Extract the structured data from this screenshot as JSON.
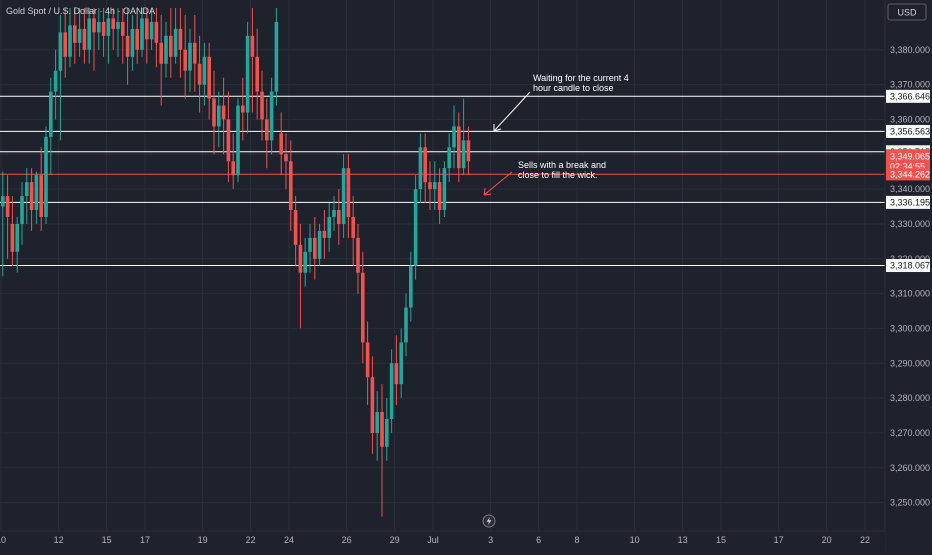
{
  "header": {
    "symbol_title": "Gold Spot / U.S. Dollar · 4h · OANDA"
  },
  "price_axis": {
    "currency_button": "USD"
  },
  "colors": {
    "background": "#1e222d",
    "bull": "#26a69a",
    "bear": "#ef5350",
    "level_line": "#ffffff",
    "current_line": "#ef5350",
    "axis_text": "#b2b5be"
  },
  "chart_data": {
    "type": "candlestick",
    "title": "Gold Spot / U.S. Dollar · 4h · OANDA",
    "y_axis": {
      "side": "right",
      "range": [
        3245,
        3392
      ],
      "ticks": [
        3250,
        3260,
        3270,
        3280,
        3290,
        3300,
        3310,
        3320,
        3330,
        3340,
        3350,
        3360,
        3370,
        3380
      ],
      "tick_labels": [
        "3,250.000",
        "3,260.000",
        "3,270.000",
        "3,280.000",
        "3,290.000",
        "3,300.000",
        "3,310.000",
        "3,320.000",
        "3,330.000",
        "3,340.000",
        "3,350.000",
        "3,360.000",
        "3,370.000",
        "3,380.000"
      ]
    },
    "x_axis": {
      "ticks": [
        {
          "label": "10",
          "idx": 0
        },
        {
          "label": "12",
          "idx": 12
        },
        {
          "label": "15",
          "idx": 22
        },
        {
          "label": "17",
          "idx": 30
        },
        {
          "label": "19",
          "idx": 42
        },
        {
          "label": "22",
          "idx": 52
        },
        {
          "label": "24",
          "idx": 60
        },
        {
          "label": "26",
          "idx": 72
        },
        {
          "label": "29",
          "idx": 82
        },
        {
          "label": "Jul",
          "idx": 90
        },
        {
          "label": "3",
          "idx": 102
        },
        {
          "label": "6",
          "idx": 112
        },
        {
          "label": "8",
          "idx": 120
        },
        {
          "label": "10",
          "idx": 132
        },
        {
          "label": "13",
          "idx": 142
        },
        {
          "label": "15",
          "idx": 150
        },
        {
          "label": "17",
          "idx": 162
        },
        {
          "label": "20",
          "idx": 172
        },
        {
          "label": "22",
          "idx": 180
        }
      ]
    },
    "candles": [
      {
        "o": 3335,
        "h": 3345,
        "c": 3338,
        "l": 3315
      },
      {
        "o": 3338,
        "h": 3344,
        "c": 3332,
        "l": 3320
      },
      {
        "o": 3330,
        "h": 3338,
        "c": 3322,
        "l": 3318
      },
      {
        "o": 3322,
        "h": 3332,
        "c": 3330,
        "l": 3316
      },
      {
        "o": 3330,
        "h": 3342,
        "c": 3338,
        "l": 3324
      },
      {
        "o": 3338,
        "h": 3346,
        "c": 3342,
        "l": 3330
      },
      {
        "o": 3342,
        "h": 3346,
        "c": 3334,
        "l": 3328
      },
      {
        "o": 3334,
        "h": 3345,
        "c": 3344,
        "l": 3330
      },
      {
        "o": 3344,
        "h": 3352,
        "c": 3332,
        "l": 3328
      },
      {
        "o": 3332,
        "h": 3358,
        "c": 3355,
        "l": 3330
      },
      {
        "o": 3355,
        "h": 3372,
        "c": 3368,
        "l": 3344
      },
      {
        "o": 3368,
        "h": 3380,
        "c": 3374,
        "l": 3360
      },
      {
        "o": 3374,
        "h": 3390,
        "c": 3385,
        "l": 3354
      },
      {
        "o": 3385,
        "h": 3392,
        "c": 3378,
        "l": 3372
      },
      {
        "o": 3378,
        "h": 3392,
        "c": 3387,
        "l": 3375
      },
      {
        "o": 3387,
        "h": 3392,
        "c": 3382,
        "l": 3376
      },
      {
        "o": 3382,
        "h": 3392,
        "c": 3386,
        "l": 3378
      },
      {
        "o": 3386,
        "h": 3392,
        "c": 3380,
        "l": 3376
      },
      {
        "o": 3380,
        "h": 3392,
        "c": 3389,
        "l": 3376
      },
      {
        "o": 3389,
        "h": 3392,
        "c": 3385,
        "l": 3374
      },
      {
        "o": 3385,
        "h": 3392,
        "c": 3388,
        "l": 3380
      },
      {
        "o": 3388,
        "h": 3392,
        "c": 3384,
        "l": 3378
      },
      {
        "o": 3384,
        "h": 3392,
        "c": 3389,
        "l": 3376
      },
      {
        "o": 3389,
        "h": 3392,
        "c": 3386,
        "l": 3380
      },
      {
        "o": 3386,
        "h": 3392,
        "c": 3388,
        "l": 3378
      },
      {
        "o": 3388,
        "h": 3392,
        "c": 3384,
        "l": 3376
      },
      {
        "o": 3384,
        "h": 3392,
        "c": 3378,
        "l": 3370
      },
      {
        "o": 3378,
        "h": 3390,
        "c": 3386,
        "l": 3374
      },
      {
        "o": 3386,
        "h": 3392,
        "c": 3380,
        "l": 3376
      },
      {
        "o": 3380,
        "h": 3392,
        "c": 3389,
        "l": 3378
      },
      {
        "o": 3389,
        "h": 3392,
        "c": 3383,
        "l": 3376
      },
      {
        "o": 3383,
        "h": 3392,
        "c": 3388,
        "l": 3380
      },
      {
        "o": 3388,
        "h": 3392,
        "c": 3382,
        "l": 3375
      },
      {
        "o": 3382,
        "h": 3390,
        "c": 3376,
        "l": 3364
      },
      {
        "o": 3376,
        "h": 3388,
        "c": 3384,
        "l": 3372
      },
      {
        "o": 3384,
        "h": 3392,
        "c": 3378,
        "l": 3372
      },
      {
        "o": 3378,
        "h": 3392,
        "c": 3386,
        "l": 3376
      },
      {
        "o": 3386,
        "h": 3392,
        "c": 3380,
        "l": 3372
      },
      {
        "o": 3380,
        "h": 3390,
        "c": 3374,
        "l": 3366
      },
      {
        "o": 3374,
        "h": 3386,
        "c": 3382,
        "l": 3368
      },
      {
        "o": 3382,
        "h": 3390,
        "c": 3376,
        "l": 3368
      },
      {
        "o": 3376,
        "h": 3384,
        "c": 3370,
        "l": 3362
      },
      {
        "o": 3370,
        "h": 3382,
        "c": 3378,
        "l": 3364
      },
      {
        "o": 3378,
        "h": 3382,
        "c": 3366,
        "l": 3360
      },
      {
        "o": 3366,
        "h": 3374,
        "c": 3358,
        "l": 3350
      },
      {
        "o": 3358,
        "h": 3368,
        "c": 3364,
        "l": 3352
      },
      {
        "o": 3364,
        "h": 3372,
        "c": 3360,
        "l": 3350
      },
      {
        "o": 3360,
        "h": 3368,
        "c": 3348,
        "l": 3342
      },
      {
        "o": 3348,
        "h": 3356,
        "c": 3344,
        "l": 3340
      },
      {
        "o": 3344,
        "h": 3366,
        "c": 3364,
        "l": 3342
      },
      {
        "o": 3364,
        "h": 3372,
        "c": 3362,
        "l": 3354
      },
      {
        "o": 3362,
        "h": 3388,
        "c": 3384,
        "l": 3356
      },
      {
        "o": 3384,
        "h": 3392,
        "c": 3378,
        "l": 3362
      },
      {
        "o": 3378,
        "h": 3386,
        "c": 3368,
        "l": 3360
      },
      {
        "o": 3368,
        "h": 3374,
        "c": 3360,
        "l": 3354
      },
      {
        "o": 3360,
        "h": 3366,
        "c": 3354,
        "l": 3346
      },
      {
        "o": 3354,
        "h": 3372,
        "c": 3368,
        "l": 3350
      },
      {
        "o": 3368,
        "h": 3392,
        "c": 3388,
        "l": 3364
      },
      {
        "o": 3356,
        "h": 3362,
        "c": 3350,
        "l": 3344
      },
      {
        "o": 3350,
        "h": 3356,
        "c": 3348,
        "l": 3340
      },
      {
        "o": 3348,
        "h": 3354,
        "c": 3334,
        "l": 3328
      },
      {
        "o": 3334,
        "h": 3338,
        "c": 3324,
        "l": 3318
      },
      {
        "o": 3324,
        "h": 3330,
        "c": 3316,
        "l": 3300
      },
      {
        "o": 3316,
        "h": 3326,
        "c": 3322,
        "l": 3312
      },
      {
        "o": 3322,
        "h": 3330,
        "c": 3326,
        "l": 3316
      },
      {
        "o": 3326,
        "h": 3332,
        "c": 3320,
        "l": 3314
      },
      {
        "o": 3320,
        "h": 3330,
        "c": 3328,
        "l": 3318
      },
      {
        "o": 3328,
        "h": 3334,
        "c": 3326,
        "l": 3320
      },
      {
        "o": 3326,
        "h": 3336,
        "c": 3332,
        "l": 3322
      },
      {
        "o": 3332,
        "h": 3338,
        "c": 3334,
        "l": 3328
      },
      {
        "o": 3334,
        "h": 3340,
        "c": 3330,
        "l": 3324
      },
      {
        "o": 3330,
        "h": 3350,
        "c": 3346,
        "l": 3326
      },
      {
        "o": 3346,
        "h": 3350,
        "c": 3332,
        "l": 3326
      },
      {
        "o": 3332,
        "h": 3338,
        "c": 3326,
        "l": 3318
      },
      {
        "o": 3326,
        "h": 3330,
        "c": 3316,
        "l": 3310
      },
      {
        "o": 3316,
        "h": 3322,
        "c": 3296,
        "l": 3290
      },
      {
        "o": 3296,
        "h": 3302,
        "c": 3286,
        "l": 3278
      },
      {
        "o": 3286,
        "h": 3292,
        "c": 3270,
        "l": 3264
      },
      {
        "o": 3270,
        "h": 3282,
        "c": 3276,
        "l": 3262
      },
      {
        "o": 3276,
        "h": 3284,
        "c": 3266,
        "l": 3246
      },
      {
        "o": 3266,
        "h": 3280,
        "c": 3274,
        "l": 3262
      },
      {
        "o": 3274,
        "h": 3294,
        "c": 3290,
        "l": 3270
      },
      {
        "o": 3290,
        "h": 3298,
        "c": 3284,
        "l": 3278
      },
      {
        "o": 3284,
        "h": 3300,
        "c": 3296,
        "l": 3280
      },
      {
        "o": 3296,
        "h": 3310,
        "c": 3306,
        "l": 3292
      },
      {
        "o": 3306,
        "h": 3322,
        "c": 3318,
        "l": 3302
      },
      {
        "o": 3318,
        "h": 3344,
        "c": 3340,
        "l": 3314
      },
      {
        "o": 3340,
        "h": 3356,
        "c": 3352,
        "l": 3336
      },
      {
        "o": 3352,
        "h": 3356,
        "c": 3342,
        "l": 3336
      },
      {
        "o": 3342,
        "h": 3348,
        "c": 3340,
        "l": 3334
      },
      {
        "o": 3340,
        "h": 3348,
        "c": 3342,
        "l": 3334
      },
      {
        "o": 3342,
        "h": 3346,
        "c": 3334,
        "l": 3330
      },
      {
        "o": 3334,
        "h": 3348,
        "c": 3346,
        "l": 3332
      },
      {
        "o": 3346,
        "h": 3356,
        "c": 3352,
        "l": 3342
      },
      {
        "o": 3352,
        "h": 3364,
        "c": 3358,
        "l": 3346
      },
      {
        "o": 3358,
        "h": 3362,
        "c": 3346,
        "l": 3342
      },
      {
        "o": 3346,
        "h": 3366,
        "c": 3354,
        "l": 3344
      },
      {
        "o": 3354,
        "h": 3358,
        "c": 3348,
        "l": 3344
      }
    ],
    "horizontal_levels": [
      3366.646,
      3356.563,
      3350.715,
      3336.195,
      3318.067
    ],
    "level_labels": [
      "3,366.646",
      "3,356.563",
      "3,350.715",
      "3,336.195",
      "3,318.067"
    ],
    "current_price": {
      "value": 3344.262,
      "label": "3,344.262"
    },
    "last_price_tag": {
      "price": "3,349.065",
      "countdown": "02:34:55"
    },
    "annotations": [
      {
        "text_lines": [
          "Waiting for the current 4",
          "hour candle to close"
        ]
      },
      {
        "text_lines": [
          "Sells with a break and",
          "close to fill the wick."
        ]
      }
    ],
    "event_marker": "lightning-icon",
    "grid": true,
    "legend": "none"
  }
}
